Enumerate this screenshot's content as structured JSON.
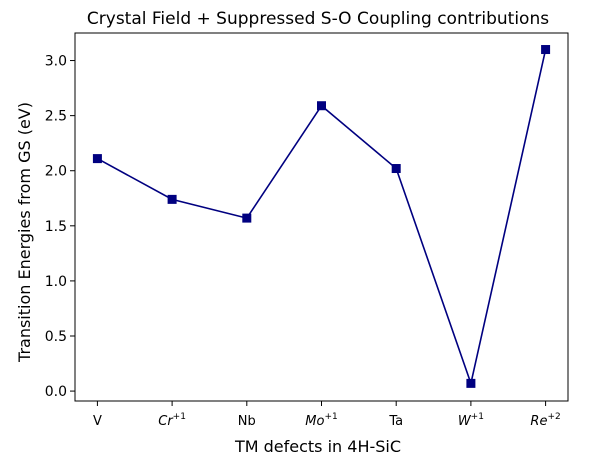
{
  "chart_data": {
    "type": "line",
    "title": "Crystal Field + Suppressed S-O Coupling contributions",
    "xlabel": "TM defects in 4H-SiC",
    "ylabel": "Transition Energies from GS (eV)",
    "ylim": [
      -0.09,
      3.25
    ],
    "yticks": [
      "0.0",
      "0.5",
      "1.0",
      "1.5",
      "2.0",
      "2.5",
      "3.0"
    ],
    "categories": [
      {
        "base": "V",
        "sup": "",
        "italic": false
      },
      {
        "base": "Cr",
        "sup": "+1",
        "italic": true
      },
      {
        "base": "Nb",
        "sup": "",
        "italic": false
      },
      {
        "base": "Mo",
        "sup": "+1",
        "italic": true
      },
      {
        "base": "Ta",
        "sup": "",
        "italic": false
      },
      {
        "base": "W",
        "sup": "+1",
        "italic": true
      },
      {
        "base": "Re",
        "sup": "+2",
        "italic": true
      }
    ],
    "values": [
      2.11,
      1.74,
      1.57,
      2.59,
      2.02,
      0.07,
      3.1
    ],
    "color": "#000080",
    "marker": "square",
    "grid": false
  }
}
